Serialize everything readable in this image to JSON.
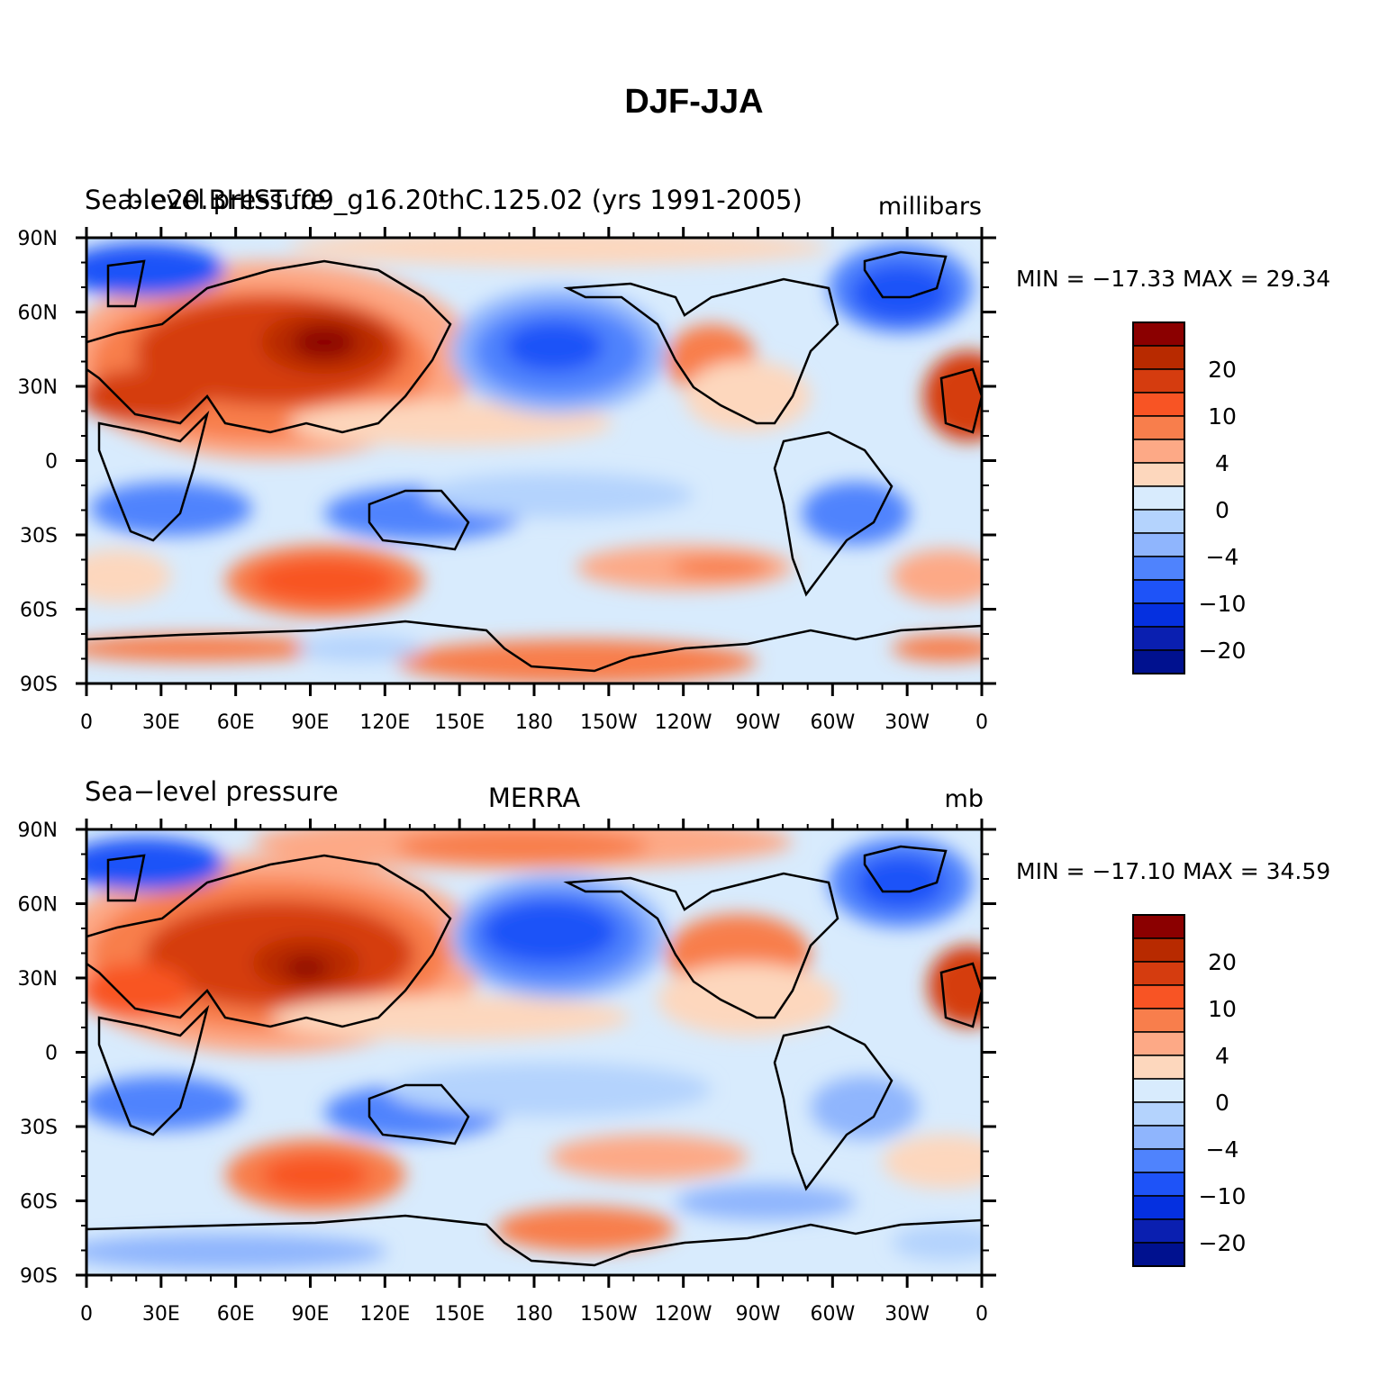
{
  "title": "DJF-JJA",
  "panels": [
    {
      "left_title": "Sea-level pressure",
      "overlay_title": "b.e20.BHIST.f09_g16.20thC.125.02 (yrs 1991-2005)",
      "center_title": "",
      "units": "millibars",
      "min_max": "MIN = −17.33 MAX =   29.34"
    },
    {
      "left_title": "Sea−level pressure",
      "overlay_title": "",
      "center_title": "MERRA",
      "units": "mb",
      "min_max": "MIN = −17.10 MAX =   34.59"
    }
  ],
  "lat_labels": [
    "90N",
    "60N",
    "30N",
    "0",
    "30S",
    "60S",
    "90S"
  ],
  "lon_labels": [
    "0",
    "30E",
    "60E",
    "90E",
    "120E",
    "150E",
    "180",
    "150W",
    "120W",
    "90W",
    "60W",
    "30W",
    "0"
  ],
  "colorbar": {
    "colors": [
      "#8b0000",
      "#b82a00",
      "#d53c0f",
      "#f85424",
      "#f87e4c",
      "#fda986",
      "#fdd7bd",
      "#d8ebfd",
      "#b4d3fd",
      "#8fb5fd",
      "#4f83fd",
      "#1e53f8",
      "#0530e0",
      "#0a1fb0",
      "#00118f"
    ],
    "labels": [
      "20",
      "10",
      "4",
      "0",
      "−4",
      "−10",
      "−20"
    ]
  },
  "colors": {
    "ocean_pos": "#fdd7bd",
    "ocean_neg": "#d8ebfd",
    "coast": "#000000"
  }
}
